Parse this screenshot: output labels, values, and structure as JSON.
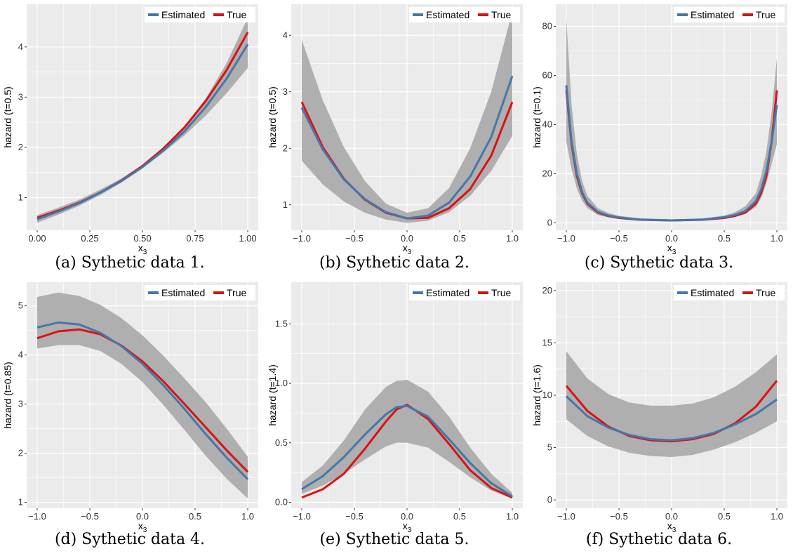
{
  "colors": {
    "estimated": "#4477aa",
    "true": "#dd1111",
    "band": "#a9a9a9",
    "panel_bg": "#ebebeb",
    "grid": "#ffffff"
  },
  "chart_data": [
    {
      "type": "line",
      "caption": "(a) Sythetic data 1.",
      "xlabel": "x",
      "xlabel_sub": "3",
      "ylabel": "hazard (t=0.5)",
      "xlim": [
        -0.05,
        1.05
      ],
      "ylim": [
        0.35,
        4.85
      ],
      "xticks": [
        0,
        0.25,
        0.5,
        0.75,
        1
      ],
      "xtick_labels": [
        "0.00",
        "0.25",
        "0.50",
        "0.75",
        "1.00"
      ],
      "yticks": [
        1,
        2,
        3,
        4
      ],
      "ytick_labels": [
        "1",
        "2",
        "3",
        "4"
      ],
      "grid": true,
      "legend_position": "top-right",
      "x": [
        0,
        0.1,
        0.2,
        0.3,
        0.4,
        0.5,
        0.6,
        0.7,
        0.8,
        0.9,
        1.0
      ],
      "series": [
        {
          "name": "Estimated",
          "values": [
            0.57,
            0.72,
            0.89,
            1.1,
            1.33,
            1.61,
            1.94,
            2.32,
            2.8,
            3.37,
            4.05
          ]
        },
        {
          "name": "True",
          "values": [
            0.6,
            0.74,
            0.9,
            1.1,
            1.34,
            1.63,
            1.98,
            2.4,
            2.92,
            3.54,
            4.29
          ]
        }
      ],
      "band": {
        "lower": [
          0.5,
          0.66,
          0.84,
          1.05,
          1.3,
          1.58,
          1.9,
          2.24,
          2.63,
          3.08,
          3.58
        ],
        "upper": [
          0.65,
          0.8,
          0.96,
          1.16,
          1.38,
          1.65,
          1.99,
          2.42,
          2.97,
          3.68,
          4.58
        ]
      }
    },
    {
      "type": "line",
      "caption": "(b) Sythetic data 2.",
      "xlabel": "x",
      "xlabel_sub": "3",
      "ylabel": "hazard (t=0.5)",
      "xlim": [
        -1.1,
        1.1
      ],
      "ylim": [
        0.55,
        4.55
      ],
      "xticks": [
        -1,
        -0.5,
        0,
        0.5,
        1
      ],
      "xtick_labels": [
        "−1.0",
        "−0.5",
        "0.0",
        "0.5",
        "1.0"
      ],
      "yticks": [
        1,
        2,
        3,
        4
      ],
      "ytick_labels": [
        "1",
        "2",
        "3",
        "4"
      ],
      "grid": true,
      "legend_position": "top-right",
      "x": [
        -1,
        -0.8,
        -0.6,
        -0.4,
        -0.2,
        0,
        0.2,
        0.4,
        0.6,
        0.8,
        1
      ],
      "series": [
        {
          "name": "Estimated",
          "values": [
            2.72,
            1.98,
            1.45,
            1.1,
            0.87,
            0.76,
            0.81,
            1.04,
            1.5,
            2.2,
            3.28
          ]
        },
        {
          "name": "True",
          "values": [
            2.82,
            2.02,
            1.46,
            1.09,
            0.86,
            0.76,
            0.77,
            0.94,
            1.28,
            1.87,
            2.82
          ]
        }
      ],
      "band": {
        "lower": [
          1.78,
          1.36,
          1.06,
          0.86,
          0.74,
          0.68,
          0.72,
          0.87,
          1.16,
          1.6,
          2.22
        ],
        "upper": [
          3.92,
          2.85,
          2.02,
          1.42,
          1.02,
          0.86,
          0.94,
          1.3,
          2.0,
          3.0,
          4.42
        ]
      }
    },
    {
      "type": "line",
      "caption": "(c) Sythetic data 3.",
      "xlabel": "x",
      "xlabel_sub": "3",
      "ylabel": "hazard (t=0.1)",
      "xlim": [
        -1.1,
        1.1
      ],
      "ylim": [
        -3,
        89
      ],
      "xticks": [
        -1,
        -0.5,
        0,
        0.5,
        1
      ],
      "xtick_labels": [
        "−1.0",
        "−0.5",
        "0.0",
        "0.5",
        "1.0"
      ],
      "yticks": [
        0,
        20,
        40,
        60,
        80
      ],
      "ytick_labels": [
        "0",
        "20",
        "40",
        "60",
        "80"
      ],
      "grid": true,
      "legend_position": "top-right",
      "x": [
        -1,
        -0.95,
        -0.9,
        -0.85,
        -0.8,
        -0.7,
        -0.6,
        -0.5,
        -0.3,
        0,
        0.3,
        0.5,
        0.6,
        0.7,
        0.8,
        0.85,
        0.9,
        0.95,
        1
      ],
      "series": [
        {
          "name": "Estimated",
          "values": [
            56,
            33,
            20,
            12.5,
            8.2,
            4.5,
            3,
            2.2,
            1.4,
            1.0,
            1.4,
            2.3,
            3.2,
            4.8,
            8.8,
            13.5,
            21,
            33,
            48
          ]
        },
        {
          "name": "True",
          "values": [
            54,
            32,
            19,
            12,
            7.8,
            4.2,
            2.8,
            2.0,
            1.3,
            1.0,
            1.3,
            2.0,
            2.8,
            4.2,
            7.8,
            12,
            19,
            33,
            54
          ]
        }
      ],
      "band": {
        "lower": [
          33,
          22,
          14,
          9,
          6,
          3.2,
          2.2,
          1.6,
          1.0,
          0.7,
          1.0,
          1.7,
          2.4,
          3.6,
          6.5,
          10,
          16,
          24,
          32
        ],
        "upper": [
          83,
          48,
          28,
          17,
          11,
          6,
          4,
          2.9,
          1.8,
          1.3,
          1.8,
          3.0,
          4.3,
          6.8,
          12,
          19,
          29,
          45,
          67
        ]
      }
    },
    {
      "type": "line",
      "caption": "(d) Sythetic data 4.",
      "xlabel": "x",
      "xlabel_sub": "3",
      "ylabel": "hazard (t=0.85)",
      "xlim": [
        -1.1,
        1.1
      ],
      "ylim": [
        0.88,
        5.48
      ],
      "xticks": [
        -1,
        -0.5,
        0,
        0.5,
        1
      ],
      "xtick_labels": [
        "−1.0",
        "−0.5",
        "0.0",
        "0.5",
        "1.0"
      ],
      "yticks": [
        1,
        2,
        3,
        4,
        5
      ],
      "ytick_labels": [
        "1",
        "2",
        "3",
        "4",
        "5"
      ],
      "grid": true,
      "legend_position": "top-right",
      "x": [
        -1,
        -0.8,
        -0.6,
        -0.4,
        -0.2,
        0,
        0.2,
        0.4,
        0.6,
        0.8,
        1
      ],
      "series": [
        {
          "name": "Estimated",
          "values": [
            4.56,
            4.66,
            4.62,
            4.45,
            4.18,
            3.82,
            3.38,
            2.9,
            2.39,
            1.91,
            1.47
          ]
        },
        {
          "name": "True",
          "values": [
            4.34,
            4.48,
            4.52,
            4.42,
            4.19,
            3.87,
            3.46,
            3.0,
            2.53,
            2.06,
            1.62
          ]
        }
      ],
      "band": {
        "lower": [
          4.13,
          4.2,
          4.2,
          4.08,
          3.82,
          3.45,
          2.98,
          2.47,
          1.95,
          1.48,
          1.08
        ],
        "upper": [
          5.18,
          5.27,
          5.2,
          5.02,
          4.75,
          4.4,
          3.98,
          3.52,
          3.04,
          2.5,
          1.93
        ]
      }
    },
    {
      "type": "line",
      "caption": "(e) Sythetic data 5.",
      "xlabel": "x",
      "xlabel_sub": "3",
      "ylabel": "hazard (t=1.4)",
      "xlim": [
        -1.1,
        1.1
      ],
      "ylim": [
        -0.05,
        1.85
      ],
      "xticks": [
        -1,
        -0.5,
        0,
        0.5,
        1
      ],
      "xtick_labels": [
        "−1.0",
        "−0.5",
        "0.0",
        "0.5",
        "1.0"
      ],
      "yticks": [
        0,
        0.5,
        1,
        1.5
      ],
      "ytick_labels": [
        "0.0",
        "0.5",
        "1.0",
        "1.5"
      ],
      "grid": true,
      "legend_position": "top-right",
      "x": [
        -1,
        -0.8,
        -0.6,
        -0.4,
        -0.2,
        -0.1,
        0,
        0.2,
        0.4,
        0.6,
        0.8,
        1
      ],
      "series": [
        {
          "name": "Estimated",
          "values": [
            0.11,
            0.22,
            0.38,
            0.57,
            0.74,
            0.8,
            0.81,
            0.72,
            0.53,
            0.33,
            0.16,
            0.05
          ]
        },
        {
          "name": "True",
          "values": [
            0.04,
            0.11,
            0.24,
            0.45,
            0.68,
            0.78,
            0.82,
            0.7,
            0.49,
            0.27,
            0.12,
            0.04
          ]
        }
      ],
      "band": {
        "lower": [
          0.07,
          0.14,
          0.24,
          0.36,
          0.47,
          0.5,
          0.5,
          0.46,
          0.34,
          0.21,
          0.1,
          0.03
        ],
        "upper": [
          0.17,
          0.31,
          0.52,
          0.78,
          0.97,
          1.02,
          1.03,
          0.93,
          0.72,
          0.46,
          0.24,
          0.08
        ]
      }
    },
    {
      "type": "line",
      "caption": "(f) Sythetic data 6.",
      "xlabel": "x",
      "xlabel_sub": "3",
      "ylabel": "hazard (t=1.6)",
      "xlim": [
        -1.1,
        1.1
      ],
      "ylim": [
        -0.8,
        20.8
      ],
      "xticks": [
        -1,
        -0.5,
        0,
        0.5,
        1
      ],
      "xtick_labels": [
        "−1.0",
        "−0.5",
        "0.0",
        "0.5",
        "1.0"
      ],
      "yticks": [
        0,
        5,
        10,
        15,
        20
      ],
      "ytick_labels": [
        "0",
        "5",
        "10",
        "15",
        "20"
      ],
      "grid": true,
      "legend_position": "top-right",
      "x": [
        -1,
        -0.8,
        -0.6,
        -0.4,
        -0.2,
        0,
        0.2,
        0.4,
        0.6,
        0.8,
        1
      ],
      "series": [
        {
          "name": "Estimated",
          "values": [
            9.9,
            8.0,
            6.9,
            6.2,
            5.8,
            5.7,
            5.9,
            6.4,
            7.2,
            8.2,
            9.6
          ]
        },
        {
          "name": "True",
          "values": [
            10.9,
            8.5,
            7.0,
            6.1,
            5.7,
            5.6,
            5.8,
            6.3,
            7.3,
            8.9,
            11.4
          ]
        }
      ],
      "band": {
        "lower": [
          7.7,
          6.1,
          5.1,
          4.5,
          4.2,
          4.1,
          4.3,
          4.8,
          5.5,
          6.4,
          7.5
        ],
        "upper": [
          14.2,
          11.6,
          10.1,
          9.3,
          9.0,
          9.0,
          9.2,
          9.8,
          10.8,
          12.2,
          13.9
        ]
      }
    }
  ]
}
